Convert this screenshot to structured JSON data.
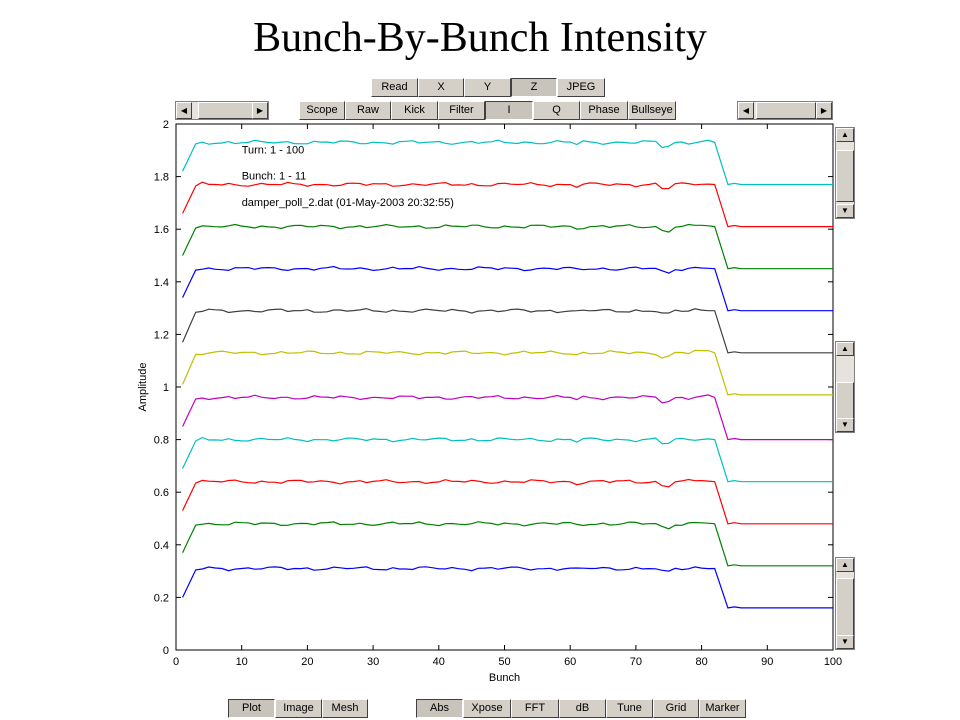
{
  "title": "Bunch-By-Bunch Intensity",
  "toolbar_row1": [
    "Read",
    "X",
    "Y",
    "Z",
    "JPEG"
  ],
  "toolbar_row1_selected": "Z",
  "toolbar_row2": [
    "Scope",
    "Raw",
    "Kick",
    "Filter",
    "I",
    "Q",
    "Phase",
    "Bullseye"
  ],
  "toolbar_row2_selected": "I",
  "bottom_left": [
    "Plot",
    "Image",
    "Mesh"
  ],
  "bottom_left_selected": "Plot",
  "bottom_right": [
    "Abs",
    "Xpose",
    "FFT",
    "dB",
    "Tune",
    "Grid",
    "Marker"
  ],
  "bottom_right_selected": "Abs",
  "chart_data": {
    "type": "line",
    "xlabel": "Bunch",
    "ylabel": "Amplitude",
    "xlim": [
      0,
      100
    ],
    "ylim": [
      0,
      2
    ],
    "xticks": [
      0,
      10,
      20,
      30,
      40,
      50,
      60,
      70,
      80,
      90,
      100
    ],
    "yticks": [
      0,
      0.2,
      0.4,
      0.6,
      0.8,
      1,
      1.2,
      1.4,
      1.6,
      1.8,
      2
    ],
    "ytick_labels": [
      "0",
      "0.2",
      "0.4",
      "0.6",
      "0.8",
      "1",
      "1.2",
      "1.4",
      "1.6",
      "1.8",
      "2"
    ],
    "grid": false,
    "annotations": [
      "Turn: 1 - 100",
      "Bunch: 1 - 11",
      "damper_poll_2.dat  (01-May-2003 20:32:55)"
    ],
    "series": [
      {
        "color": "#0000ff",
        "start": 0.2,
        "plateau": 0.31,
        "tail": 0.16
      },
      {
        "color": "#008000",
        "start": 0.37,
        "plateau": 0.48,
        "tail": 0.32
      },
      {
        "color": "#ff0000",
        "start": 0.53,
        "plateau": 0.64,
        "tail": 0.48
      },
      {
        "color": "#00bfbf",
        "start": 0.69,
        "plateau": 0.8,
        "tail": 0.64
      },
      {
        "color": "#bf00bf",
        "start": 0.85,
        "plateau": 0.96,
        "tail": 0.8
      },
      {
        "color": "#bfbf00",
        "start": 1.01,
        "plateau": 1.13,
        "tail": 0.97
      },
      {
        "color": "#404040",
        "start": 1.17,
        "plateau": 1.29,
        "tail": 1.13
      },
      {
        "color": "#0000ff",
        "start": 1.34,
        "plateau": 1.45,
        "tail": 1.29
      },
      {
        "color": "#008000",
        "start": 1.5,
        "plateau": 1.61,
        "tail": 1.45
      },
      {
        "color": "#ff0000",
        "start": 1.66,
        "plateau": 1.77,
        "tail": 1.61
      },
      {
        "color": "#00bfbf",
        "start": 1.82,
        "plateau": 1.93,
        "tail": 1.77
      }
    ]
  }
}
